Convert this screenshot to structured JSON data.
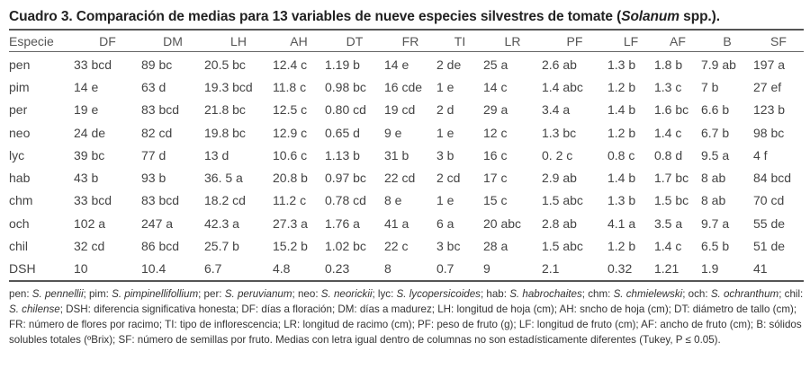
{
  "caption": {
    "prefix": "Cuadro 3. Comparación de medias para 13 variables de nueve especies silvestres de tomate (",
    "genus": "Solanum",
    "suffix": " spp.)."
  },
  "table": {
    "headers": [
      "Especie",
      "DF",
      "DM",
      "LH",
      "AH",
      "DT",
      "FR",
      "TI",
      "LR",
      "PF",
      "LF",
      "AF",
      "B",
      "SF"
    ],
    "rows": [
      [
        "pen",
        "33 bcd",
        "89 bc",
        "20.5 bc",
        "12.4 c",
        "1.19 b",
        "14 e",
        "2 de",
        "25 a",
        "2.6 ab",
        "1.3 b",
        "1.8 b",
        "7.9 ab",
        "197 a"
      ],
      [
        "pim",
        "14 e",
        "63 d",
        "19.3 bcd",
        "11.8 c",
        "0.98 bc",
        "16 cde",
        "1 e",
        "14 c",
        "1.4 abc",
        "1.2 b",
        "1.3 c",
        "7 b",
        "27 ef"
      ],
      [
        "per",
        "19 e",
        "83 bcd",
        "21.8 bc",
        "12.5 c",
        "0.80 cd",
        "19 cd",
        "2 d",
        "29 a",
        "3.4 a",
        "1.4 b",
        "1.6 bc",
        "6.6 b",
        "123 b"
      ],
      [
        "neo",
        "24 de",
        "82 cd",
        "19.8 bc",
        "12.9 c",
        "0.65 d",
        "9 e",
        "1 e",
        "12 c",
        "1.3 bc",
        "1.2 b",
        "1.4 c",
        "6.7 b",
        "98 bc"
      ],
      [
        "lyc",
        "39 bc",
        "77 d",
        "13 d",
        "10.6 c",
        "1.13 b",
        "31 b",
        "3 b",
        "16 c",
        "0. 2 c",
        "0.8 c",
        "0.8 d",
        "9.5 a",
        "4 f"
      ],
      [
        "hab",
        "43 b",
        "93 b",
        "36. 5 a",
        "20.8 b",
        "0.97 bc",
        "22 cd",
        "2 cd",
        "17 c",
        "2.9 ab",
        "1.4 b",
        "1.7 bc",
        "8 ab",
        "84 bcd"
      ],
      [
        "chm",
        "33 bcd",
        "83 bcd",
        "18.2 cd",
        "11.2 c",
        "0.78 cd",
        "8 e",
        "1 e",
        "15 c",
        "1.5 abc",
        "1.3 b",
        "1.5 bc",
        "8 ab",
        "70 cd"
      ],
      [
        "och",
        "102 a",
        "247 a",
        "42.3 a",
        "27.3 a",
        "1.76 a",
        "41 a",
        "6 a",
        "20 abc",
        "2.8 ab",
        "4.1 a",
        "3.5 a",
        "9.7 a",
        "55 de"
      ],
      [
        "chil",
        "32 cd",
        "86 bcd",
        "25.7 b",
        "15.2 b",
        "1.02 bc",
        "22 c",
        "3 bc",
        "28 a",
        "1.5 abc",
        "1.2 b",
        "1.4 c",
        "6.5 b",
        "51 de"
      ],
      [
        "DSH",
        "10",
        "10.4",
        "6.7",
        "4.8",
        "0.23",
        "8",
        "0.7",
        "9",
        "2.1",
        "0.32",
        "1.21",
        "1.9",
        "41"
      ]
    ]
  },
  "footnote": {
    "segments": [
      {
        "t": "pen: "
      },
      {
        "t": "S. pennellii",
        "i": true
      },
      {
        "t": "; pim: "
      },
      {
        "t": "S. pimpinellifollium",
        "i": true
      },
      {
        "t": "; per: "
      },
      {
        "t": "S. peruvianum",
        "i": true
      },
      {
        "t": "; neo: "
      },
      {
        "t": "S. neorickii",
        "i": true
      },
      {
        "t": "; lyc: "
      },
      {
        "t": "S. lycopersicoides",
        "i": true
      },
      {
        "t": "; hab: "
      },
      {
        "t": "S. habrochaites",
        "i": true
      },
      {
        "t": "; chm: "
      },
      {
        "t": "S. chmielewski",
        "i": true
      },
      {
        "t": "; och: "
      },
      {
        "t": "S. ochranthum",
        "i": true
      },
      {
        "t": "; chil: "
      },
      {
        "t": "S. chilense",
        "i": true
      },
      {
        "t": "; DSH: diferencia significativa honesta; DF: días a floración; DM: días a madurez; LH: longitud de hoja (cm); AH: sncho de hoja (cm); DT: diámetro de tallo (cm); FR: número de flores por racimo; TI: tipo de inflorescencia; LR: longitud de racimo (cm); PF: peso de fruto (g); LF: longitud de fruto (cm); AF: ancho de fruto (cm); B: sólidos solubles totales (ºBrix); SF: número de semillas por fruto. Medias con letra igual dentro de columnas no son estadísticamente diferentes (Tukey, P ≤ 0.05)."
      }
    ]
  }
}
